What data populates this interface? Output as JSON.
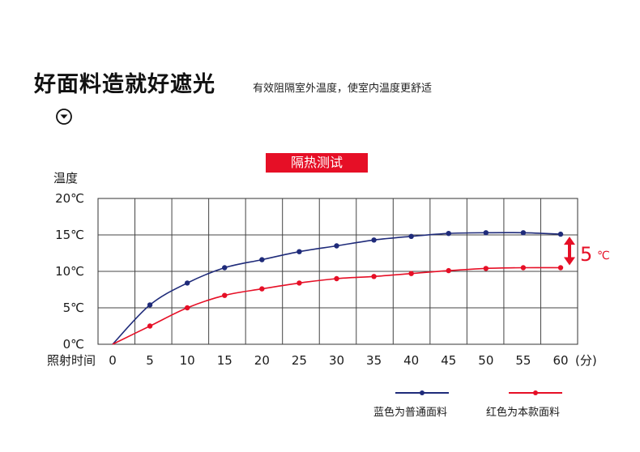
{
  "header": {
    "title": "好面料造就好遮光",
    "subtitle": "有效阻隔室外温度，使室内温度更舒适",
    "scroll_icon": "circle-chevron-down-icon"
  },
  "badge": {
    "label": "隔热测试",
    "color": "#e60f26"
  },
  "annotation": {
    "value": "5",
    "unit": "℃",
    "color": "#e60f26"
  },
  "legend": {
    "blue_label": "蓝色为普通面料",
    "red_label": "红色为本款面料"
  },
  "chart_data": {
    "type": "line",
    "title": "隔热测试",
    "ylabel": "温度",
    "xlabel": "照射时间",
    "x_unit": "(分)",
    "x": [
      0,
      5,
      10,
      15,
      20,
      25,
      30,
      35,
      40,
      45,
      50,
      55,
      60
    ],
    "x_tick_labels": [
      "0",
      "5",
      "10",
      "15",
      "20",
      "25",
      "30",
      "35",
      "40",
      "45",
      "50",
      "55",
      "60"
    ],
    "y_ticks": [
      0,
      5,
      10,
      15,
      20
    ],
    "y_tick_labels": [
      "0℃",
      "5℃",
      "10℃",
      "15℃",
      "20℃"
    ],
    "xlim": [
      0,
      60
    ],
    "ylim": [
      0,
      20
    ],
    "grid": true,
    "series": [
      {
        "name": "蓝色为普通面料",
        "color": "#1f2b7a",
        "x": [
          5,
          10,
          15,
          20,
          25,
          30,
          35,
          40,
          45,
          50,
          55,
          60
        ],
        "values": [
          5.4,
          8.4,
          10.5,
          11.6,
          12.7,
          13.5,
          14.3,
          14.8,
          15.2,
          15.3,
          15.3,
          15.1
        ]
      },
      {
        "name": "红色为本款面料",
        "color": "#e60f26",
        "x": [
          5,
          10,
          15,
          20,
          25,
          30,
          35,
          40,
          45,
          50,
          55,
          60
        ],
        "values": [
          2.5,
          5.0,
          6.7,
          7.6,
          8.4,
          9.0,
          9.3,
          9.7,
          10.1,
          10.4,
          10.5,
          10.5
        ]
      }
    ]
  }
}
